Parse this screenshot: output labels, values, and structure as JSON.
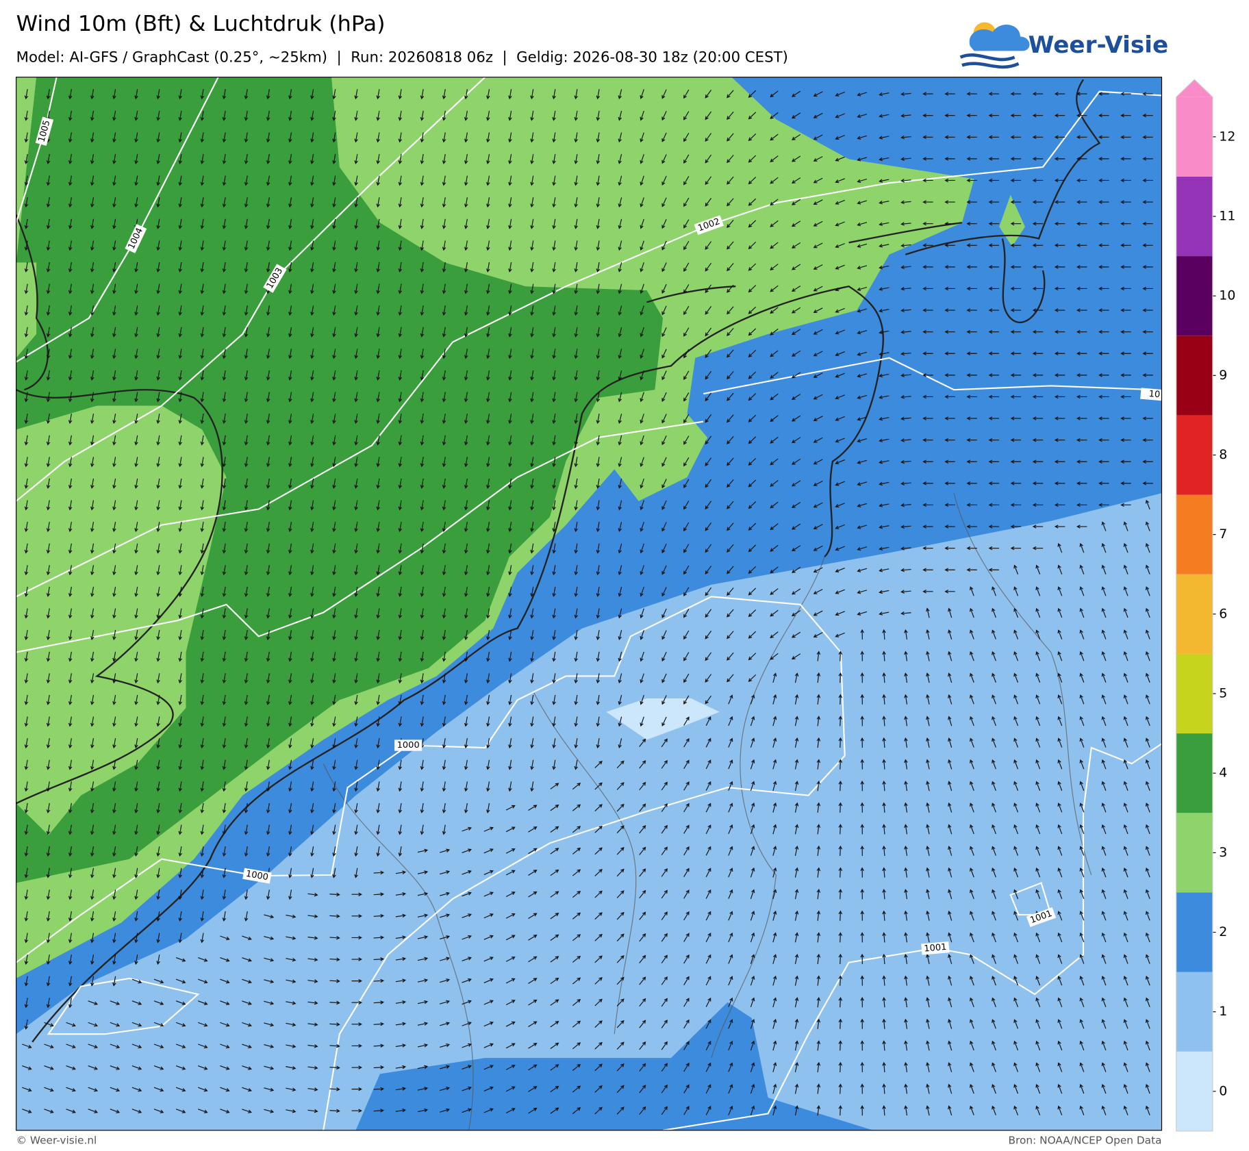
{
  "header": {
    "title": "Wind 10m (Bft) & Luchtdruk (hPa)",
    "subtitle": "Model: AI-GFS / GraphCast (0.25°, ~25km)  |  Run: 20260818 06z  |  Geldig: 2026-08-30 18z (20:00 CEST)",
    "logo": "Weer-Visie"
  },
  "colorbar": {
    "labels": [
      0,
      1,
      2,
      3,
      4,
      5,
      6,
      7,
      8,
      9,
      10,
      11,
      12
    ],
    "colors": [
      "#cce6fb",
      "#8fc1ee",
      "#3d8bdc",
      "#8ed46b",
      "#3a9e3c",
      "#c6d41e",
      "#f3b730",
      "#f47d22",
      "#e02424",
      "#9a0015",
      "#5a0060",
      "#9634b8",
      "#f98bc9"
    ]
  },
  "isobar_labels": [
    "1005",
    "1004",
    "1003",
    "1002",
    "1000",
    "1000",
    "1001",
    "1001",
    "10"
  ],
  "footer": {
    "left": "© Weer-visie.nl",
    "right": "Bron: NOAA/NCEP Open Data"
  }
}
